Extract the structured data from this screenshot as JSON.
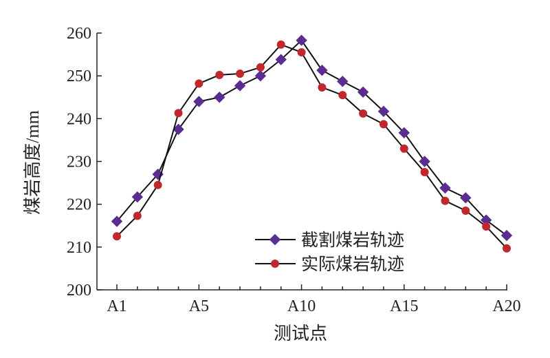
{
  "chart_data": {
    "type": "line",
    "xlabel": "测试点",
    "ylabel": "煤岩高度/mm",
    "x": [
      "A1",
      "A2",
      "A3",
      "A4",
      "A5",
      "A6",
      "A7",
      "A8",
      "A9",
      "A10",
      "A11",
      "A12",
      "A13",
      "A14",
      "A15",
      "A16",
      "A17",
      "A18",
      "A19",
      "A20"
    ],
    "x_tick_labels": [
      "A1",
      "A5",
      "A10",
      "A15",
      "A20"
    ],
    "ylim": [
      200,
      260
    ],
    "y_ticks": [
      200,
      210,
      220,
      230,
      240,
      250,
      260
    ],
    "grid": false,
    "legend_position": "bottom-right",
    "series": [
      {
        "name": "截割煤岩轨迹",
        "marker": "diamond",
        "color": "#5b2c91",
        "values": [
          216.0,
          221.7,
          227.0,
          237.5,
          244.0,
          245.0,
          247.7,
          250.0,
          253.8,
          258.3,
          251.3,
          248.7,
          246.2,
          241.7,
          236.7,
          230.0,
          223.8,
          221.5,
          216.3,
          212.7
        ]
      },
      {
        "name": "实际煤岩轨迹",
        "marker": "circle",
        "color": "#c0282d",
        "values": [
          212.5,
          217.3,
          224.5,
          241.3,
          248.2,
          250.2,
          250.5,
          252.0,
          257.3,
          255.5,
          247.3,
          245.5,
          241.2,
          238.7,
          233.0,
          227.5,
          220.8,
          218.5,
          214.8,
          209.7
        ]
      }
    ]
  }
}
